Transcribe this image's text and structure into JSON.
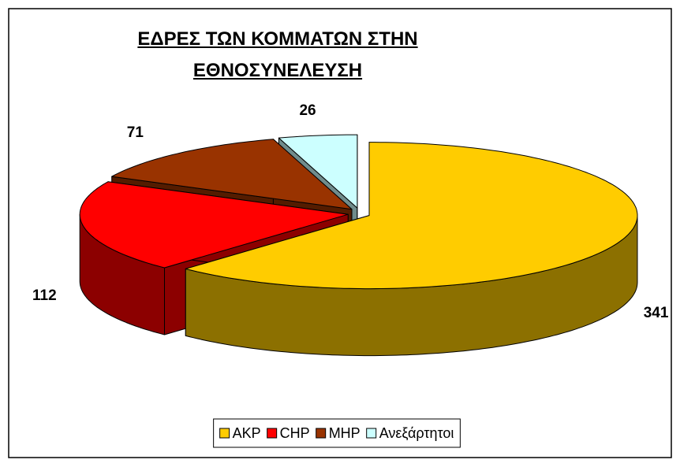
{
  "chart_data": {
    "type": "pie",
    "title": "ΕΔΡΕΣ ΤΩΝ ΚΟΜΜΑΤΩΝ ΣΤΗΝ ΕΘΝΟΣΥΝΕΛΕΥΣΗ",
    "categories": [
      "AKP",
      "CHP",
      "MHP",
      "Ανεξάρτητοι"
    ],
    "values": [
      341,
      112,
      71,
      26
    ],
    "colors": [
      "#ffcc00",
      "#ff0000",
      "#993300",
      "#ccffff"
    ],
    "legend": "bottom"
  }
}
